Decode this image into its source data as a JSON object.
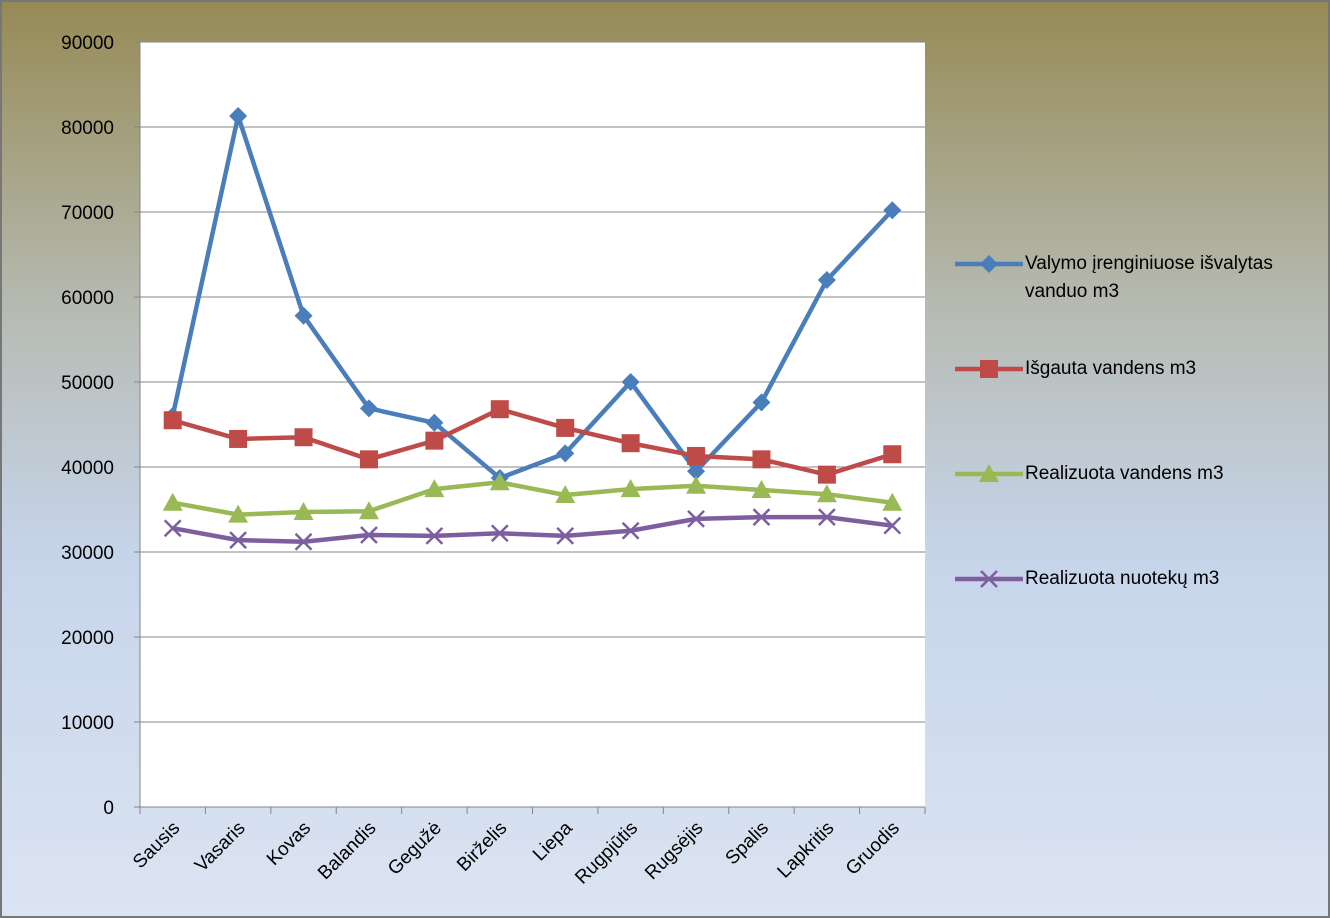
{
  "chart_data": {
    "type": "line",
    "categories": [
      "Sausis",
      "Vasaris",
      "Kovas",
      "Balandis",
      "Gegužė",
      "Birželis",
      "Liepa",
      "Rugpjūtis",
      "Rugsėjis",
      "Spalis",
      "Lapkritis",
      "Gruodis"
    ],
    "series": [
      {
        "name": "Valymo įrenginiuose išvalytas vanduo m3",
        "color": "#4a7ebb",
        "marker": "diamond",
        "values": [
          46000,
          81300,
          57800,
          46900,
          45200,
          38700,
          41600,
          50000,
          39500,
          47600,
          62000,
          70200
        ]
      },
      {
        "name": "Išgauta vandens m3",
        "color": "#be4b48",
        "marker": "square",
        "values": [
          45500,
          43300,
          43500,
          40900,
          43100,
          46800,
          44600,
          42800,
          41300,
          40900,
          39100,
          41500
        ]
      },
      {
        "name": "Realizuota vandens m3",
        "color": "#98b954",
        "marker": "triangle",
        "values": [
          35800,
          34400,
          34700,
          34800,
          37400,
          38200,
          36700,
          37400,
          37800,
          37300,
          36800,
          35800
        ]
      },
      {
        "name": "Realizuota nuotekų m3",
        "color": "#7d5fa0",
        "marker": "x",
        "values": [
          32800,
          31400,
          31200,
          32000,
          31900,
          32200,
          31900,
          32500,
          33900,
          34100,
          34100,
          33100
        ]
      }
    ],
    "ylim": [
      0,
      90000
    ],
    "yticks": [
      0,
      10000,
      20000,
      30000,
      40000,
      50000,
      60000,
      70000,
      80000,
      90000
    ],
    "grid": true,
    "legend": "right"
  }
}
